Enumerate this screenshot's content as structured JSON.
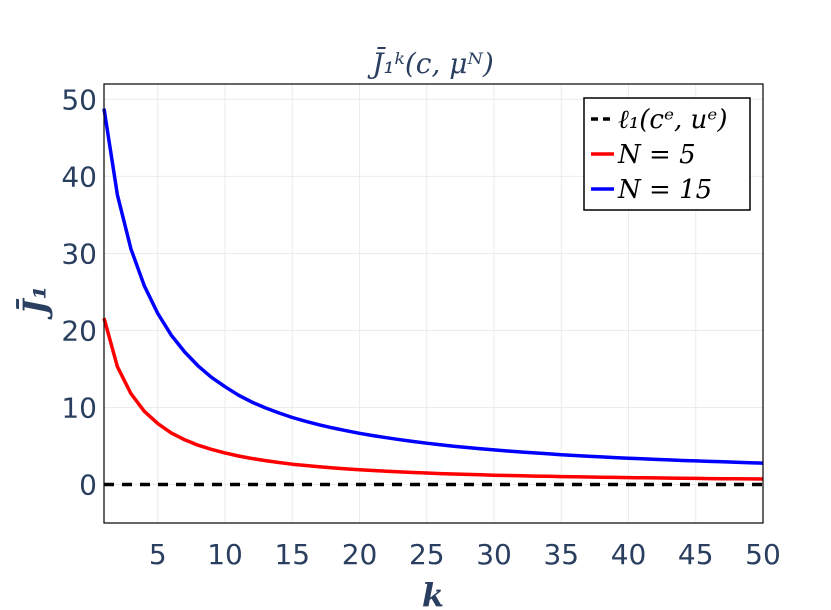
{
  "chart_data": {
    "type": "line",
    "title": "J̄₁ᵏ(c, μᴺ)",
    "xlabel": "k",
    "ylabel": "J̄₁",
    "xlim": [
      1,
      50
    ],
    "ylim": [
      -5,
      52
    ],
    "xticks": [
      5,
      10,
      15,
      20,
      25,
      30,
      35,
      40,
      45,
      50
    ],
    "yticks": [
      0,
      10,
      20,
      30,
      40,
      50
    ],
    "grid": true,
    "legend_position": "top-right",
    "series": [
      {
        "name": "ℓ₁(cᵉ, uᵉ)",
        "color": "#000000",
        "dash": "dashed",
        "x": [
          1,
          50
        ],
        "y": [
          0,
          0
        ]
      },
      {
        "name": "N = 5",
        "color": "#ff0000",
        "dash": "solid",
        "x": [
          1,
          2,
          3,
          4,
          5,
          6,
          7,
          8,
          9,
          10,
          11,
          12,
          13,
          14,
          15,
          16,
          17,
          18,
          19,
          20,
          21,
          22,
          23,
          24,
          25,
          26,
          27,
          28,
          29,
          30,
          31,
          32,
          33,
          34,
          35,
          36,
          37,
          38,
          39,
          40,
          41,
          42,
          43,
          44,
          45,
          46,
          47,
          48,
          49,
          50
        ],
        "y": [
          21.6,
          15.3,
          11.8,
          9.5,
          7.9,
          6.7,
          5.8,
          5.1,
          4.55,
          4.1,
          3.7,
          3.37,
          3.1,
          2.85,
          2.64,
          2.46,
          2.3,
          2.16,
          2.03,
          1.92,
          1.82,
          1.73,
          1.64,
          1.56,
          1.49,
          1.42,
          1.36,
          1.31,
          1.26,
          1.21,
          1.17,
          1.13,
          1.09,
          1.06,
          1.03,
          1.0,
          0.97,
          0.94,
          0.92,
          0.89,
          0.87,
          0.85,
          0.83,
          0.81,
          0.79,
          0.77,
          0.75,
          0.74,
          0.72,
          0.71
        ]
      },
      {
        "name": "N = 15",
        "color": "#0000ff",
        "dash": "solid",
        "x": [
          1,
          2,
          3,
          4,
          5,
          6,
          7,
          8,
          9,
          10,
          11,
          12,
          13,
          14,
          15,
          16,
          17,
          18,
          19,
          20,
          21,
          22,
          23,
          24,
          25,
          26,
          27,
          28,
          29,
          30,
          31,
          32,
          33,
          34,
          35,
          36,
          37,
          38,
          39,
          40,
          41,
          42,
          43,
          44,
          45,
          46,
          47,
          48,
          49,
          50
        ],
        "y": [
          48.8,
          37.6,
          30.6,
          25.8,
          22.2,
          19.4,
          17.2,
          15.4,
          13.9,
          12.7,
          11.6,
          10.7,
          9.95,
          9.3,
          8.7,
          8.2,
          7.75,
          7.35,
          6.98,
          6.65,
          6.35,
          6.07,
          5.82,
          5.58,
          5.36,
          5.16,
          4.97,
          4.8,
          4.64,
          4.49,
          4.35,
          4.22,
          4.1,
          3.98,
          3.87,
          3.77,
          3.67,
          3.58,
          3.49,
          3.41,
          3.33,
          3.26,
          3.19,
          3.12,
          3.06,
          3.0,
          2.94,
          2.88,
          2.83,
          2.78
        ]
      }
    ]
  }
}
